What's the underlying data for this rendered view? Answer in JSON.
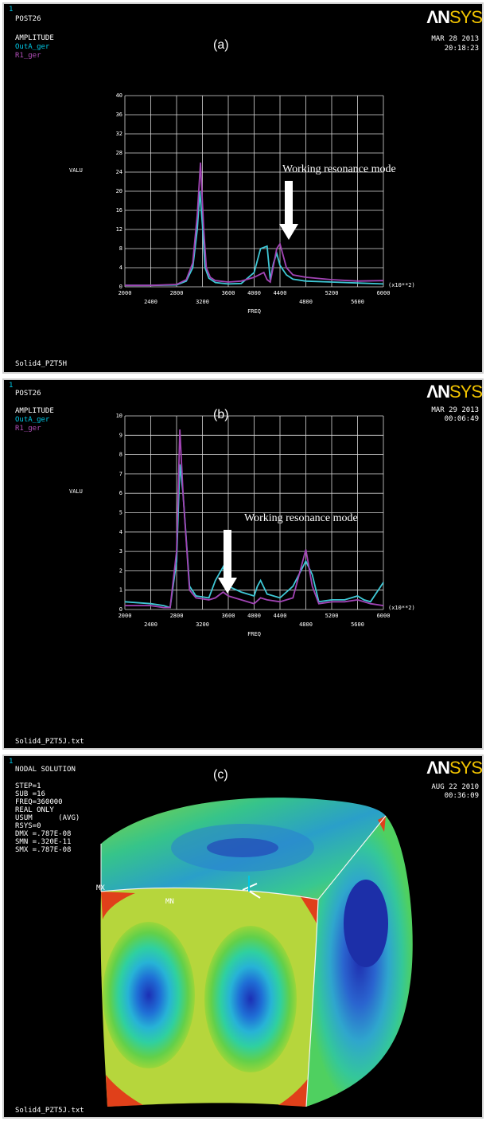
{
  "panels": [
    {
      "window_no": "1",
      "header": "POST26",
      "subheader": "AMPLITUDE",
      "legend": [
        "OutA_ger",
        "R1_ger"
      ],
      "tag": "(a)",
      "logo_a": "ΛN",
      "logo_b": "SYS",
      "date": "MAR 28 2013",
      "time": "20:18:23",
      "annotation": "Working resonance mode",
      "footer": "Solid4_PZT5H"
    },
    {
      "window_no": "1",
      "header": "POST26",
      "subheader": "AMPLITUDE",
      "legend": [
        "OutA_ger",
        "R1_ger"
      ],
      "tag": "(b)",
      "logo_a": "ΛN",
      "logo_b": "SYS",
      "date": "MAR 29 2013",
      "time": "00:06:49",
      "annotation": "Working resonance mode",
      "footer": "Solid4_PZT5J.txt"
    },
    {
      "window_no": "1",
      "header": "NODAL SOLUTION",
      "tag": "(c)",
      "logo_a": "ΛN",
      "logo_b": "SYS",
      "date": "AUG 22 2010",
      "time": "00:36:09",
      "info": [
        "STEP=1",
        "SUB =16",
        "FREQ=360000",
        "REAL ONLY",
        "USUM      (AVG)",
        "RSYS=0",
        "DMX =.787E-08",
        "SMN =.320E-11",
        "SMX =.787E-08"
      ],
      "mx_label": "MX",
      "mn_label": "MN",
      "footer": "Solid4_PZT5J.txt"
    }
  ],
  "chart_data": [
    {
      "type": "line",
      "xlabel": "FREQ",
      "ylabel": "VALU",
      "x_multiplier": "(x10**2)",
      "xlim": [
        2000,
        6000
      ],
      "ylim": [
        0,
        40
      ],
      "x_ticks_upper": [
        "2000",
        "2800",
        "3600",
        "4000",
        "4400",
        "5200",
        "6000"
      ],
      "x_ticks_lower": [
        "2400",
        "3200",
        "4800",
        "5600"
      ],
      "y_ticks": [
        "0",
        "4",
        "8",
        "12",
        "16",
        "20",
        "24",
        "28",
        "32",
        "36",
        "40"
      ],
      "series": [
        {
          "name": "OutA_ger",
          "color": "#3fc8d6",
          "x": [
            2000,
            2400,
            2800,
            2950,
            3050,
            3120,
            3160,
            3200,
            3240,
            3300,
            3400,
            3600,
            3800,
            4000,
            4100,
            4200,
            4250,
            4300,
            4350,
            4400,
            4500,
            4600,
            4800,
            5200,
            5600,
            6000
          ],
          "y": [
            0.3,
            0.3,
            0.4,
            1.2,
            4,
            12,
            20,
            13,
            4,
            1.8,
            0.9,
            0.6,
            0.7,
            3,
            8,
            8.5,
            1.5,
            5,
            7,
            4.5,
            2.5,
            1.6,
            1.2,
            1,
            0.8,
            0.6
          ]
        },
        {
          "name": "R1_ger",
          "color": "#a244b5",
          "x": [
            2000,
            2400,
            2800,
            2950,
            3050,
            3120,
            3170,
            3220,
            3260,
            3320,
            3400,
            3600,
            3800,
            4000,
            4150,
            4200,
            4250,
            4350,
            4400,
            4500,
            4600,
            4800,
            5200,
            5600,
            6000
          ],
          "y": [
            0.3,
            0.3,
            0.5,
            1.5,
            5,
            15,
            26,
            12,
            4,
            2,
            1.3,
            1,
            1.2,
            2,
            3,
            1.5,
            1,
            8,
            9,
            4,
            2.5,
            2,
            1.5,
            1.2,
            1.3
          ]
        }
      ]
    },
    {
      "type": "line",
      "xlabel": "FREQ",
      "ylabel": "VALU",
      "x_multiplier": "(x10**2)",
      "xlim": [
        2000,
        6000
      ],
      "ylim": [
        0,
        10
      ],
      "x_ticks_upper": [
        "2000",
        "2800",
        "3600",
        "4000",
        "4400",
        "5200",
        "6000"
      ],
      "x_ticks_lower": [
        "2400",
        "3200",
        "4800",
        "5600"
      ],
      "y_ticks": [
        "0",
        "1",
        "2",
        "3",
        "4",
        "5",
        "6",
        "7",
        "8",
        "9",
        "10"
      ],
      "series": [
        {
          "name": "OutA_ger",
          "color": "#3fc8d6",
          "x": [
            2000,
            2400,
            2600,
            2700,
            2800,
            2850,
            2900,
            3000,
            3100,
            3300,
            3400,
            3520,
            3600,
            3800,
            4000,
            4050,
            4100,
            4200,
            4400,
            4600,
            4800,
            4900,
            5000,
            5200,
            5400,
            5600,
            5700,
            5800,
            6000
          ],
          "y": [
            0.4,
            0.3,
            0.2,
            0.1,
            2.5,
            7.5,
            6,
            1.2,
            0.7,
            0.6,
            1.5,
            2.2,
            1.2,
            0.9,
            0.7,
            1.2,
            1.5,
            0.8,
            0.6,
            1.2,
            2.5,
            1.8,
            0.4,
            0.5,
            0.5,
            0.7,
            0.5,
            0.4,
            1.4
          ]
        },
        {
          "name": "R1_ger",
          "color": "#a244b5",
          "x": [
            2000,
            2400,
            2600,
            2700,
            2800,
            2850,
            2900,
            3000,
            3100,
            3300,
            3400,
            3520,
            3600,
            3800,
            4000,
            4100,
            4200,
            4400,
            4600,
            4800,
            4900,
            5000,
            5200,
            5400,
            5600,
            5700,
            5800,
            6000
          ],
          "y": [
            0.2,
            0.2,
            0.1,
            0.1,
            3,
            9.3,
            6,
            1,
            0.6,
            0.5,
            0.6,
            0.9,
            0.7,
            0.5,
            0.3,
            0.6,
            0.5,
            0.4,
            0.6,
            3.1,
            1.2,
            0.3,
            0.4,
            0.4,
            0.5,
            0.4,
            0.3,
            0.2
          ]
        }
      ]
    }
  ]
}
